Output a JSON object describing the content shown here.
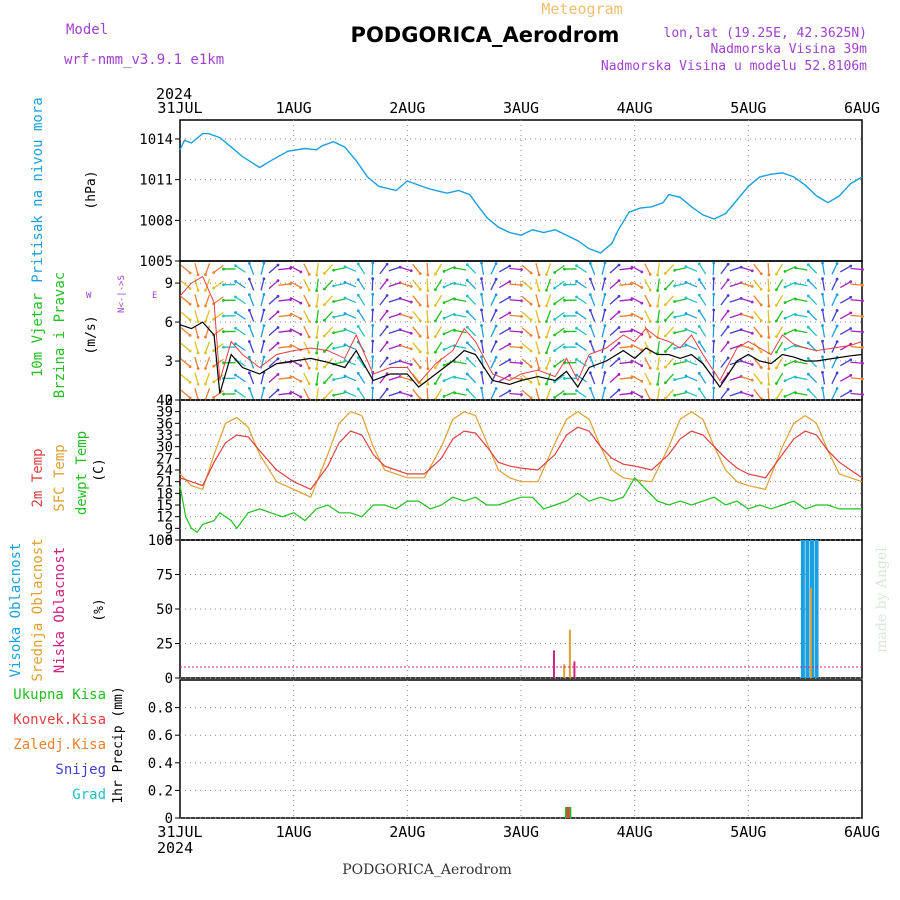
{
  "header": {
    "model_label": "Model",
    "model_name": "wrf-nmm_v3.9.1 e1km",
    "product": "Meteogram",
    "station": "PODGORICA_Aerodrom",
    "coords": "lon,lat (19.25E, 42.3625N)",
    "elevation": "Nadmorska Visina 39m",
    "model_elevation": "Nadmorska Visina u modelu 52.8106m"
  },
  "footer": {
    "station": "PODGORICA_Aerodrom",
    "credit": "made by Angel"
  },
  "time_axis": {
    "year": "2024",
    "labels": [
      "31JUL",
      "1AUG",
      "2AUG",
      "3AUG",
      "4AUG",
      "5AUG",
      "6AUG"
    ],
    "range_days": [
      0,
      6
    ]
  },
  "colors": {
    "pressure": "#1aa0e0",
    "wind_speed": "#000000",
    "wind_gust": "#e04040",
    "temp_2m": "#e04040",
    "temp_sfc": "#e0a030",
    "dewpoint": "#20c020",
    "cloud_high": "#1aa0e0",
    "cloud_mid": "#e0a030",
    "cloud_low": "#d02080",
    "precip_total": "#20c020",
    "precip_conv": "#e04040",
    "precip_frozen": "#f08030",
    "precip_snow": "#4040d0",
    "precip_hail": "#20c0c0"
  },
  "panels": {
    "pressure": {
      "ylabel_name": "Pritisak na nivou mora",
      "unit": "(hPa)",
      "ticks": [
        "1005",
        "1008",
        "1011",
        "1014"
      ]
    },
    "wind": {
      "ylabel_name_1": "10m Vjetar",
      "ylabel_name_2": "Brzina i Pravac",
      "unit": "(m/s)",
      "ticks": [
        "0",
        "3",
        "6",
        "9"
      ],
      "compass": {
        "w": "W",
        "e": "E",
        "ns": "N<-|->S"
      }
    },
    "temperature": {
      "label_2m": "2m Temp",
      "label_sfc": "SFC Temp",
      "label_dew": "dewpt Temp",
      "unit": "(C)",
      "ticks": [
        "6",
        "9",
        "12",
        "15",
        "18",
        "21",
        "24",
        "27",
        "30",
        "33",
        "36",
        "39",
        "42"
      ]
    },
    "cloud": {
      "label_high": "Visoka Oblacnost",
      "label_mid": "Srednja Oblacnost",
      "label_low": "Niska Oblacnost",
      "unit": "(%)",
      "ticks": [
        "0",
        "25",
        "50",
        "75",
        "100"
      ]
    },
    "precip": {
      "label_total": "Ukupna Kisa",
      "label_conv": "Konvek.Kisa",
      "label_frozen": "Zaledj.Kisa",
      "label_snow": "Snijeg",
      "label_hail": "Grad",
      "unit": "1hr Precip (mm)",
      "ticks": [
        "0",
        "0.2",
        "0.4",
        "0.6",
        "0.8"
      ]
    }
  },
  "chart_data": [
    {
      "type": "line",
      "name": "pressure",
      "x_unit": "days since 31JUL",
      "xlim": [
        0,
        6
      ],
      "ylim": [
        1005,
        1015.4
      ],
      "series": [
        {
          "name": "Pritisak na nivou mora",
          "x": [
            0,
            0.04,
            0.1,
            0.2,
            0.25,
            0.35,
            0.45,
            0.55,
            0.7,
            0.8,
            0.95,
            1.1,
            1.2,
            1.25,
            1.35,
            1.45,
            1.55,
            1.65,
            1.75,
            1.9,
            2.0,
            2.1,
            2.2,
            2.35,
            2.45,
            2.55,
            2.6,
            2.7,
            2.8,
            2.9,
            3.0,
            3.1,
            3.2,
            3.3,
            3.4,
            3.5,
            3.6,
            3.7,
            3.8,
            3.85,
            3.95,
            4.05,
            4.15,
            4.25,
            4.3,
            4.4,
            4.5,
            4.6,
            4.7,
            4.8,
            4.9,
            5.0,
            5.1,
            5.2,
            5.3,
            5.4,
            5.5,
            5.6,
            5.7,
            5.8,
            5.9,
            6.0
          ],
          "values": [
            1013.2,
            1013.9,
            1013.7,
            1014.4,
            1014.4,
            1014.1,
            1013.4,
            1012.7,
            1011.9,
            1012.4,
            1013.1,
            1013.3,
            1013.2,
            1013.5,
            1013.8,
            1013.4,
            1012.4,
            1011.2,
            1010.5,
            1010.2,
            1010.9,
            1010.6,
            1010.3,
            1010.0,
            1010.2,
            1009.9,
            1009.3,
            1008.2,
            1007.5,
            1007.1,
            1006.9,
            1007.3,
            1007.1,
            1007.3,
            1006.9,
            1006.5,
            1005.9,
            1005.6,
            1006.3,
            1007.2,
            1008.6,
            1008.9,
            1009.0,
            1009.3,
            1009.9,
            1009.7,
            1009.0,
            1008.4,
            1008.1,
            1008.5,
            1009.5,
            1010.5,
            1011.2,
            1011.4,
            1011.5,
            1011.2,
            1010.6,
            1009.8,
            1009.3,
            1009.8,
            1010.7,
            1011.2
          ]
        }
      ]
    },
    {
      "type": "line",
      "name": "wind",
      "x_unit": "days since 31JUL",
      "xlim": [
        0,
        6
      ],
      "ylim": [
        0,
        10.7
      ],
      "series": [
        {
          "name": "wind speed",
          "x": [
            0,
            0.1,
            0.2,
            0.3,
            0.35,
            0.45,
            0.55,
            0.7,
            0.85,
            1.0,
            1.15,
            1.3,
            1.45,
            1.55,
            1.7,
            1.85,
            2.0,
            2.1,
            2.25,
            2.4,
            2.5,
            2.6,
            2.75,
            2.9,
            3.0,
            3.15,
            3.3,
            3.4,
            3.5,
            3.6,
            3.75,
            3.9,
            4.0,
            4.1,
            4.2,
            4.3,
            4.4,
            4.5,
            4.6,
            4.75,
            4.9,
            5.0,
            5.1,
            5.2,
            5.3,
            5.4,
            5.5,
            5.6,
            5.75,
            5.9,
            6.0
          ],
          "values": [
            5.8,
            5.5,
            6.0,
            5.0,
            0.5,
            3.5,
            2.5,
            2.0,
            2.8,
            3.0,
            3.2,
            2.9,
            2.5,
            3.8,
            1.5,
            2.0,
            2.0,
            1.0,
            2.0,
            3.0,
            3.8,
            3.5,
            1.5,
            1.2,
            1.5,
            1.8,
            1.5,
            2.2,
            1.0,
            2.5,
            3.0,
            3.8,
            3.2,
            4.0,
            3.5,
            3.5,
            3.2,
            3.5,
            2.8,
            1.0,
            3.0,
            3.5,
            3.0,
            2.8,
            3.5,
            3.3,
            3.0,
            3.0,
            3.2,
            3.4,
            3.5
          ]
        },
        {
          "name": "wind gust",
          "x": [
            0,
            0.1,
            0.2,
            0.3,
            0.35,
            0.45,
            0.55,
            0.7,
            0.85,
            1.0,
            1.15,
            1.3,
            1.45,
            1.55,
            1.7,
            1.85,
            2.0,
            2.1,
            2.25,
            2.4,
            2.5,
            2.6,
            2.75,
            2.9,
            3.0,
            3.15,
            3.3,
            3.4,
            3.5,
            3.6,
            3.75,
            3.9,
            4.0,
            4.1,
            4.2,
            4.3,
            4.4,
            4.5,
            4.6,
            4.75,
            4.9,
            5.0,
            5.1,
            5.2,
            5.3,
            5.4,
            5.5,
            5.6,
            5.75,
            5.9,
            6.0
          ],
          "values": [
            8.0,
            9.0,
            9.5,
            7.5,
            1.5,
            4.5,
            3.5,
            2.5,
            3.5,
            3.8,
            4.0,
            3.8,
            3.2,
            5.0,
            2.0,
            2.5,
            2.5,
            1.3,
            2.8,
            3.8,
            5.5,
            4.5,
            2.0,
            1.5,
            2.0,
            2.3,
            1.8,
            3.2,
            1.5,
            3.5,
            4.0,
            5.0,
            4.5,
            5.5,
            4.8,
            4.5,
            4.0,
            5.0,
            3.5,
            1.5,
            4.0,
            4.5,
            4.0,
            3.5,
            5.0,
            4.3,
            4.0,
            3.8,
            4.0,
            4.2,
            4.5
          ]
        }
      ]
    },
    {
      "type": "line",
      "name": "temperature",
      "x_unit": "days since 31JUL",
      "xlim": [
        0,
        6
      ],
      "ylim": [
        6,
        42
      ],
      "series": [
        {
          "name": "2m Temp",
          "x": [
            0,
            0.1,
            0.2,
            0.3,
            0.4,
            0.5,
            0.6,
            0.7,
            0.85,
            1.0,
            1.15,
            1.3,
            1.4,
            1.5,
            1.6,
            1.7,
            1.8,
            1.9,
            2.0,
            2.15,
            2.3,
            2.4,
            2.5,
            2.6,
            2.7,
            2.8,
            2.9,
            3.0,
            3.15,
            3.3,
            3.4,
            3.5,
            3.6,
            3.7,
            3.8,
            3.9,
            4.0,
            4.15,
            4.3,
            4.4,
            4.5,
            4.6,
            4.7,
            4.8,
            4.9,
            5.0,
            5.15,
            5.3,
            5.4,
            5.5,
            5.6,
            5.7,
            5.8,
            5.9,
            6.0
          ],
          "values": [
            22,
            21,
            20,
            26,
            31,
            33,
            32.5,
            29,
            24,
            21,
            19,
            25,
            31,
            34,
            33,
            28,
            25,
            24,
            23,
            23,
            27,
            32,
            34,
            33.5,
            30,
            26,
            25,
            24.5,
            24,
            28,
            33,
            35,
            34,
            30,
            27,
            25.5,
            25,
            24,
            28,
            32,
            34,
            33,
            30,
            27,
            24.5,
            23,
            22,
            28,
            32,
            34,
            33,
            29,
            26,
            24,
            22
          ]
        },
        {
          "name": "SFC Temp",
          "x": [
            0,
            0.1,
            0.2,
            0.3,
            0.4,
            0.5,
            0.6,
            0.7,
            0.85,
            1.0,
            1.15,
            1.3,
            1.4,
            1.5,
            1.6,
            1.7,
            1.8,
            1.9,
            2.0,
            2.15,
            2.3,
            2.4,
            2.5,
            2.6,
            2.7,
            2.8,
            2.9,
            3.0,
            3.15,
            3.3,
            3.4,
            3.5,
            3.6,
            3.7,
            3.8,
            3.9,
            4.0,
            4.15,
            4.3,
            4.4,
            4.5,
            4.6,
            4.7,
            4.8,
            4.9,
            5.0,
            5.15,
            5.3,
            5.4,
            5.5,
            5.6,
            5.7,
            5.8,
            5.9,
            6.0
          ],
          "values": [
            23,
            20,
            19,
            28,
            36,
            37.5,
            35,
            28,
            21,
            19,
            17,
            28,
            36,
            39,
            38,
            30,
            24,
            23,
            22,
            22,
            30,
            37,
            39,
            38,
            31,
            24,
            22,
            21,
            21,
            31,
            37,
            39,
            37,
            30,
            24,
            22,
            21.5,
            21,
            30,
            37,
            39,
            37,
            30,
            24,
            21,
            20,
            19,
            30,
            36,
            38,
            36,
            29,
            23,
            22,
            21
          ]
        },
        {
          "name": "dewpt Temp",
          "x": [
            0,
            0.05,
            0.1,
            0.15,
            0.2,
            0.3,
            0.35,
            0.45,
            0.5,
            0.6,
            0.7,
            0.8,
            0.9,
            1.0,
            1.1,
            1.2,
            1.3,
            1.4,
            1.5,
            1.6,
            1.7,
            1.8,
            1.9,
            2.0,
            2.1,
            2.2,
            2.3,
            2.4,
            2.5,
            2.6,
            2.7,
            2.8,
            2.9,
            3.0,
            3.1,
            3.2,
            3.3,
            3.4,
            3.5,
            3.6,
            3.7,
            3.8,
            3.9,
            4.0,
            4.1,
            4.2,
            4.3,
            4.4,
            4.5,
            4.6,
            4.7,
            4.8,
            4.9,
            5.0,
            5.1,
            5.2,
            5.3,
            5.4,
            5.5,
            5.6,
            5.7,
            5.8,
            5.9,
            6.0
          ],
          "values": [
            20,
            12,
            9,
            8,
            10,
            11,
            13,
            11,
            9,
            13,
            14,
            13,
            12,
            13,
            11,
            14,
            15,
            13,
            13,
            12,
            15,
            15,
            14,
            16,
            16,
            14,
            15,
            17,
            16,
            17,
            15,
            15,
            16,
            17,
            17,
            14,
            15,
            16,
            18,
            16,
            17,
            16,
            17,
            22,
            19,
            16,
            15,
            16,
            15,
            16,
            17,
            15,
            16,
            14,
            15,
            14,
            15,
            16,
            14,
            15,
            15,
            14,
            14,
            14
          ]
        }
      ]
    },
    {
      "type": "bar",
      "name": "cloud",
      "x_unit": "days since 31JUL",
      "xlim": [
        0,
        6
      ],
      "ylim": [
        0,
        100
      ],
      "series": [
        {
          "name": "Visoka Oblacnost",
          "x": [
            5.48,
            5.52,
            5.56,
            5.6
          ],
          "values": [
            100,
            100,
            100,
            100
          ]
        },
        {
          "name": "Srednja Oblacnost",
          "x": [
            3.38,
            3.43,
            5.55
          ],
          "values": [
            10,
            35,
            65
          ]
        },
        {
          "name": "Niska Oblacnost",
          "x": [
            3.29,
            3.47
          ],
          "values": [
            20,
            12
          ]
        }
      ]
    },
    {
      "type": "bar",
      "name": "precip",
      "x_unit": "days since 31JUL",
      "xlim": [
        0,
        6
      ],
      "ylim": [
        0,
        1.0
      ],
      "series": [
        {
          "name": "Ukupna Kisa",
          "x": [
            3.4,
            3.43
          ],
          "values": [
            0.08,
            0.08
          ]
        },
        {
          "name": "Konvek.Kisa",
          "x": [
            3.415
          ],
          "values": [
            0.08
          ]
        }
      ]
    }
  ]
}
